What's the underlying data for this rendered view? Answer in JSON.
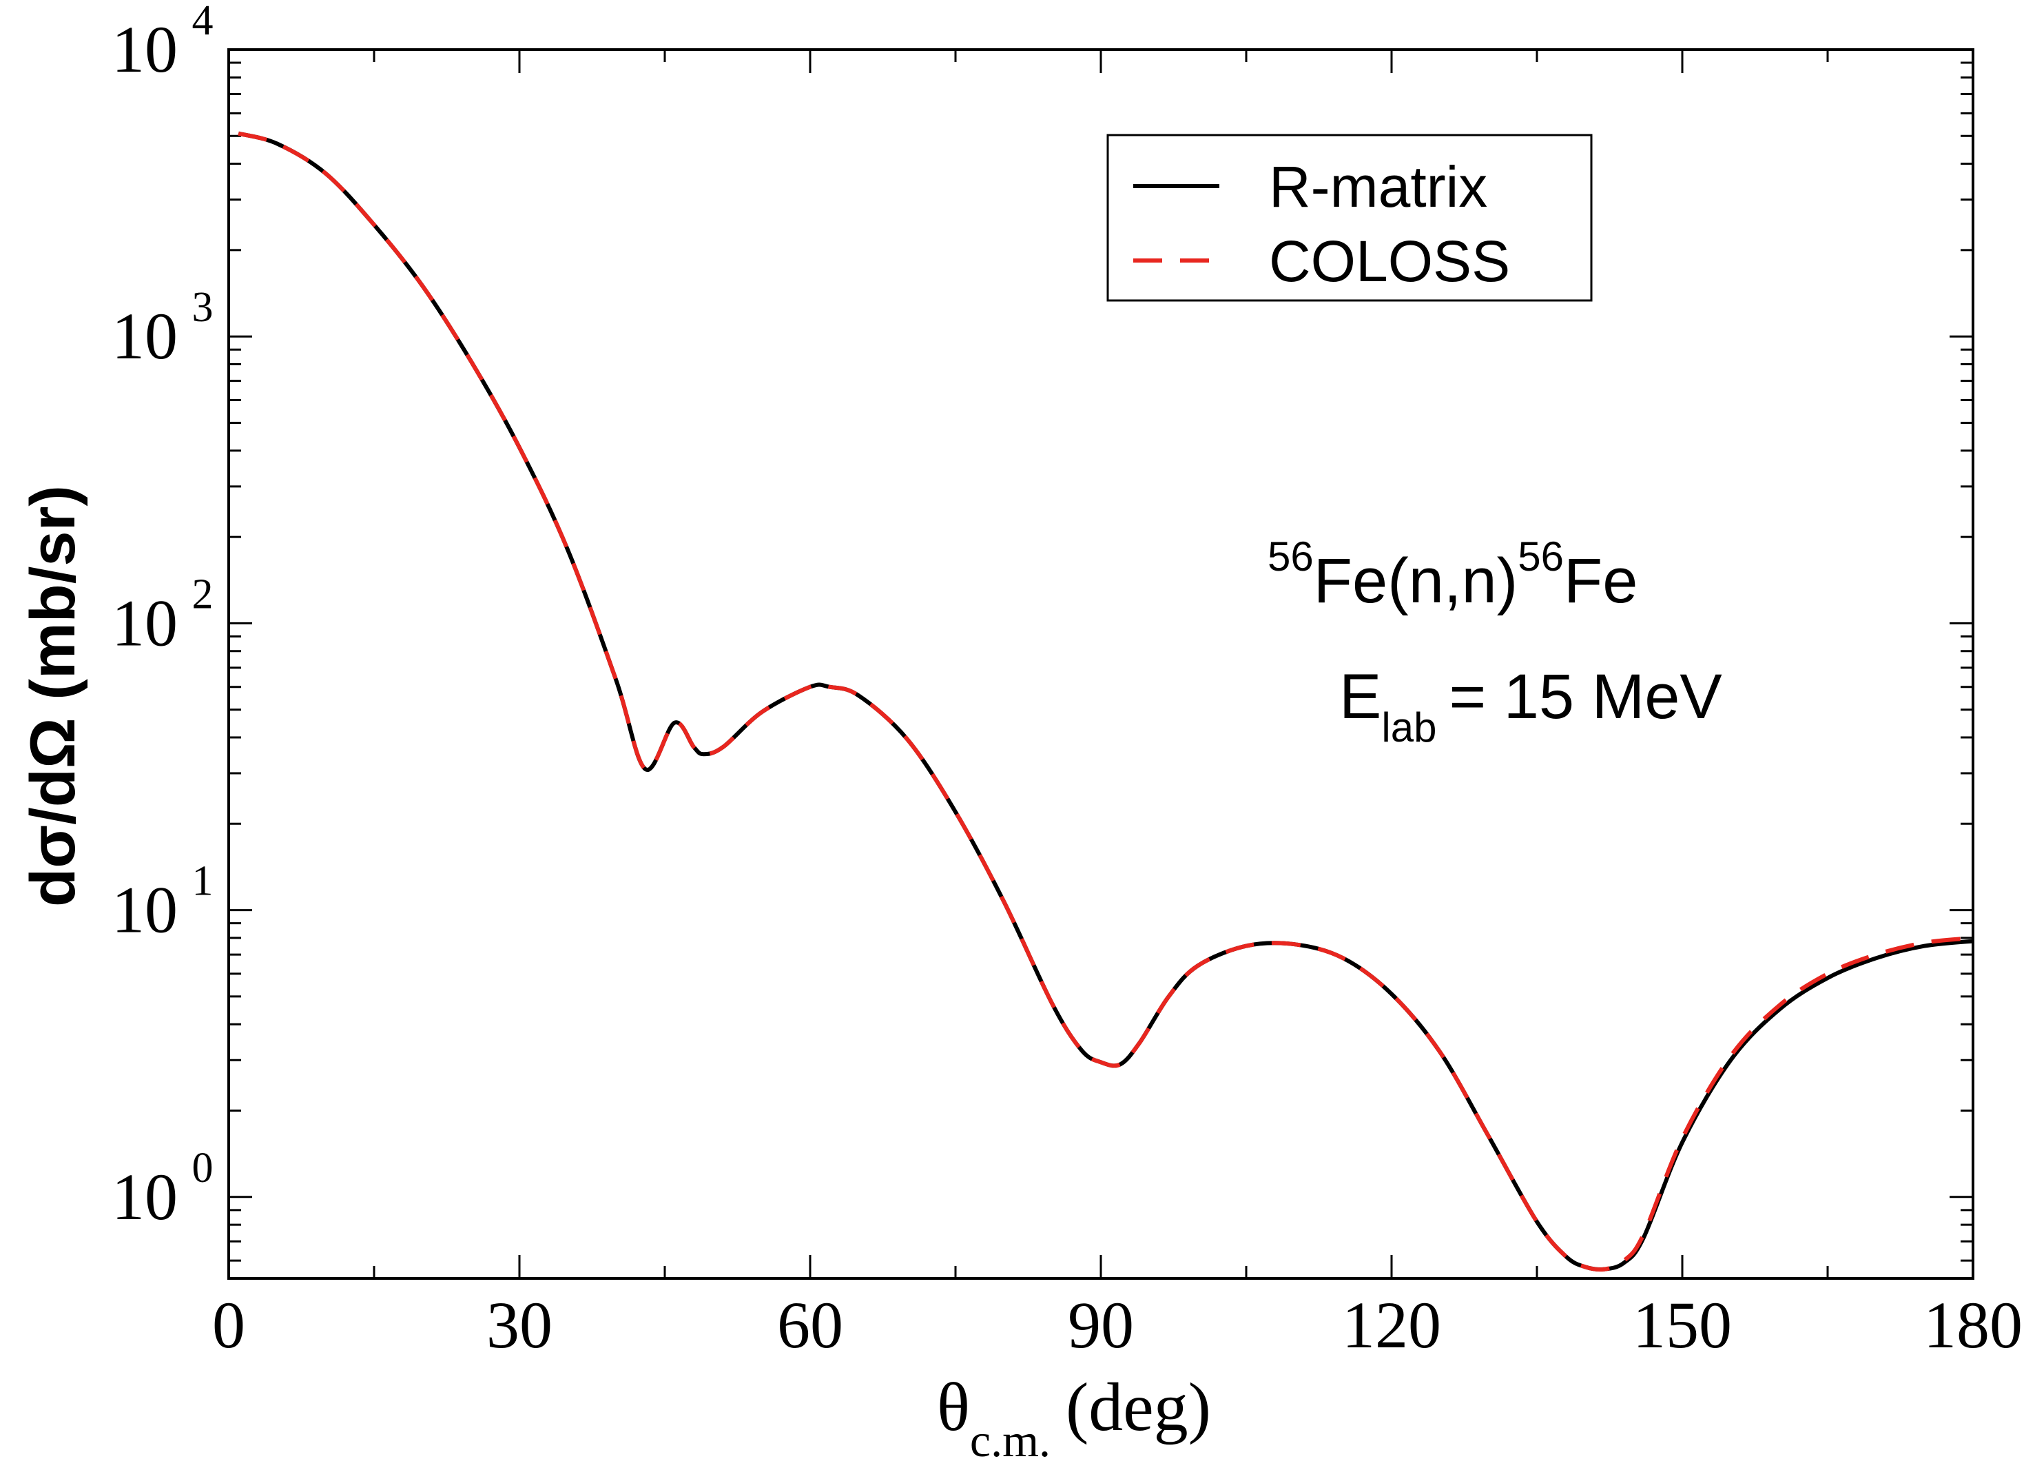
{
  "chart_data": {
    "type": "line",
    "xlabel_main": "θ",
    "xlabel_sub": "c.m.",
    "xlabel_unit": "(deg)",
    "ylabel": "dσ/dΩ (mb/sr)",
    "xlim": [
      0,
      180
    ],
    "ylim": [
      0.52,
      10000
    ],
    "yscale": "log",
    "grid": false,
    "legend_position": "top-right",
    "x_ticks": [
      0,
      30,
      60,
      90,
      120,
      150,
      180
    ],
    "x_tick_labels": [
      "0",
      "30",
      "60",
      "90",
      "120",
      "150",
      "180"
    ],
    "y_ticks": [
      1,
      10,
      100,
      1000,
      10000
    ],
    "y_tick_labels": [
      {
        "base": "10",
        "exp": "0"
      },
      {
        "base": "10",
        "exp": "1"
      },
      {
        "base": "10",
        "exp": "2"
      },
      {
        "base": "10",
        "exp": "3"
      },
      {
        "base": "10",
        "exp": "4"
      }
    ],
    "annotation": {
      "reaction": {
        "sup1": "56",
        "middle": "Fe(n,n)",
        "sup2": "56",
        "end": "Fe"
      },
      "energy": {
        "main": "E",
        "sub": "lab",
        "rest": "= 15 MeV"
      }
    },
    "series": [
      {
        "name": "R-matrix",
        "color": "#000000",
        "style": "solid",
        "x": [
          1,
          5,
          10,
          15,
          20,
          25,
          30,
          35,
          40,
          43,
          46,
          48,
          49,
          51,
          55,
          60,
          62,
          65,
          70,
          75,
          80,
          85,
          88,
          90,
          92,
          94,
          97,
          100,
          105,
          110,
          115,
          120,
          125,
          130,
          135,
          138,
          140,
          142,
          144,
          146,
          150,
          155,
          160,
          165,
          170,
          175,
          180
        ],
        "y": [
          5100,
          4700,
          3700,
          2450,
          1500,
          820,
          410,
          180,
          63,
          31,
          45,
          37,
          35,
          37,
          49,
          60,
          60,
          56,
          39.5,
          22,
          10.7,
          4.7,
          3.25,
          2.95,
          2.9,
          3.45,
          5.0,
          6.4,
          7.5,
          7.6,
          6.8,
          5.1,
          3.2,
          1.63,
          0.82,
          0.62,
          0.57,
          0.56,
          0.59,
          0.72,
          1.55,
          3.0,
          4.5,
          5.8,
          6.8,
          7.5,
          7.8
        ]
      },
      {
        "name": "COLOSS",
        "color": "#e8261f",
        "style": "dashed",
        "x": [
          1,
          5,
          10,
          15,
          20,
          25,
          30,
          35,
          40,
          43,
          46,
          48,
          49,
          51,
          55,
          60,
          62,
          65,
          70,
          75,
          80,
          85,
          88,
          90,
          92,
          94,
          97,
          100,
          105,
          110,
          115,
          120,
          125,
          130,
          135,
          138,
          140,
          142,
          144,
          146,
          150,
          155,
          160,
          165,
          170,
          175,
          180
        ],
        "y": [
          5100,
          4700,
          3700,
          2450,
          1500,
          820,
          410,
          180,
          63,
          31,
          45,
          37,
          35,
          37,
          49,
          60,
          60,
          56,
          39.5,
          22,
          10.7,
          4.7,
          3.25,
          2.95,
          2.9,
          3.45,
          5.0,
          6.4,
          7.5,
          7.6,
          6.8,
          5.1,
          3.2,
          1.63,
          0.82,
          0.62,
          0.57,
          0.56,
          0.6,
          0.74,
          1.6,
          3.1,
          4.65,
          6.0,
          7.0,
          7.7,
          8.0
        ]
      }
    ]
  }
}
